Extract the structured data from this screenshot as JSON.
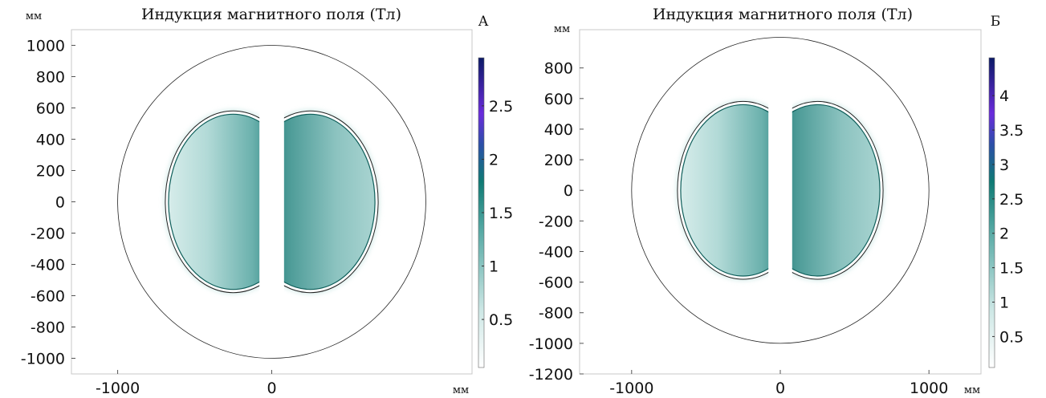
{
  "chart_data": [
    {
      "id": "A",
      "type": "heatmap",
      "title": "Индукция магнитного поля (Тл)",
      "panel_label": "А",
      "xlabel": "мм",
      "ylabel": "мм",
      "xlim": [
        -1300,
        1300
      ],
      "ylim": [
        -1100,
        1100
      ],
      "x_ticks": [
        -1000,
        0
      ],
      "y_ticks": [
        1000,
        800,
        600,
        400,
        200,
        0,
        -200,
        -400,
        -600,
        -800,
        -1000
      ],
      "colorbar": {
        "min": 0.05,
        "max": 2.95,
        "ticks": [
          2.5,
          2,
          1.5,
          1,
          0.5
        ]
      },
      "geometry": {
        "outer_circle_radius": 1000,
        "pole_center_x": 250,
        "pole_semi_axis_x": 420,
        "pole_semi_axis_y": 560,
        "inner_edge_x": 80
      }
    },
    {
      "id": "Б",
      "type": "heatmap",
      "title": "Индукция магнитного поля (Тл)",
      "panel_label": "Б",
      "xlabel": "мм",
      "ylabel": "мм",
      "xlim": [
        -1350,
        1350
      ],
      "ylim": [
        -1200,
        1050
      ],
      "x_ticks": [
        -1000,
        0,
        1000
      ],
      "y_ticks": [
        800,
        600,
        400,
        200,
        0,
        -200,
        -400,
        -600,
        -800,
        -1000,
        -1200
      ],
      "colorbar": {
        "min": 0.05,
        "max": 4.55,
        "ticks": [
          4,
          3.5,
          3,
          2.5,
          2,
          1.5,
          1,
          0.5
        ]
      },
      "geometry": {
        "outer_circle_radius": 1000,
        "pole_center_x": 250,
        "pole_semi_axis_x": 420,
        "pole_semi_axis_y": 560,
        "inner_edge_x": 80
      }
    }
  ]
}
